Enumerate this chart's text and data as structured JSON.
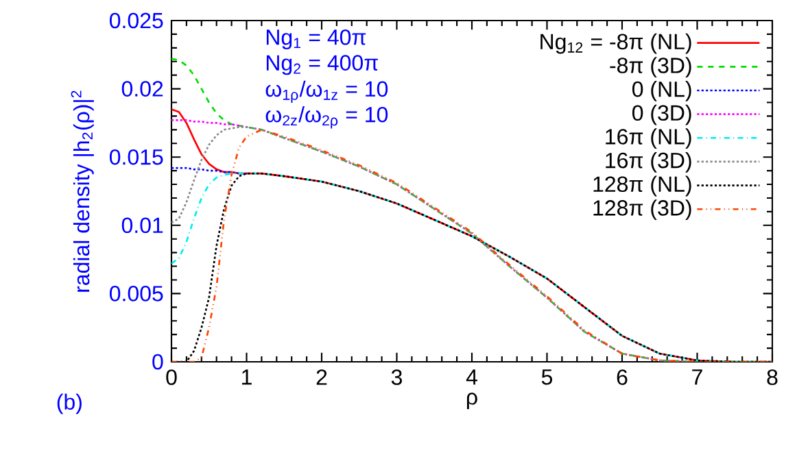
{
  "chart_data": {
    "type": "line",
    "xlabel": "ρ",
    "ylabel": "radial density |h$_{2}$(ρ)|$^{2}$",
    "annotations": [
      "Ng$_{1}$ = 40π",
      "Ng$_{2}$ = 400π",
      "ω$_{1ρ}$/ω$_{1z}$ = 10",
      "ω$_{2z}$/ω$_{2ρ}$ = 10",
      "(b)"
    ],
    "x": [
      0,
      0.1,
      0.2,
      0.3,
      0.4,
      0.5,
      0.6,
      0.7,
      0.8,
      0.9,
      1.0,
      1.2,
      1.5,
      2,
      2.5,
      3,
      3.5,
      4,
      4.5,
      5,
      5.5,
      6,
      6.5,
      7,
      7.5,
      8
    ],
    "series": [
      {
        "name": "Ng$_{12}$ = -8π (NL)",
        "color": "#ff0000",
        "line_style": "solid",
        "values": [
          0.0185,
          0.0183,
          0.0175,
          0.0163,
          0.0152,
          0.0145,
          0.0141,
          0.0139,
          0.0139,
          0.0138,
          0.0138,
          0.0138,
          0.0136,
          0.0132,
          0.0125,
          0.0116,
          0.0104,
          0.0092,
          0.0077,
          0.0061,
          0.004,
          0.0019,
          0.0006,
          0.0001,
          0,
          0
        ]
      },
      {
        "name": "-8π (3D)",
        "color": "#00dd00",
        "line_style": "dashed",
        "values": [
          0.0222,
          0.0221,
          0.0217,
          0.021,
          0.02,
          0.019,
          0.0182,
          0.0177,
          0.0174,
          0.0173,
          0.0172,
          0.017,
          0.0164,
          0.0154,
          0.0143,
          0.013,
          0.0112,
          0.0094,
          0.007,
          0.0047,
          0.0022,
          0.0006,
          0.0001,
          0,
          0,
          0
        ]
      },
      {
        "name": "0 (NL)",
        "color": "#0000ff",
        "line_style": "dotted",
        "values": [
          0.0142,
          0.0142,
          0.0142,
          0.0141,
          0.0141,
          0.014,
          0.014,
          0.0139,
          0.0139,
          0.0138,
          0.0138,
          null,
          null,
          null,
          null,
          null,
          null,
          null,
          null,
          null,
          null,
          null,
          null,
          null,
          null,
          null
        ]
      },
      {
        "name": "0 (3D)",
        "color": "#ff00ff",
        "line_style": "dotted",
        "values": [
          0.0177,
          0.0177,
          0.0177,
          0.0176,
          0.0176,
          0.0175,
          0.0175,
          0.0174,
          0.0174,
          0.0173,
          0.0172,
          0.017,
          0.0164,
          0.0154,
          0.0143,
          0.013,
          0.0112,
          0.0094,
          0.007,
          0.0047,
          0.0022,
          0.0006,
          0.0001,
          0,
          null,
          null
        ]
      },
      {
        "name": "16π (NL)",
        "color": "#00eeee",
        "line_style": "dashdot",
        "values": [
          0.0072,
          0.0076,
          0.0088,
          0.0105,
          0.012,
          0.013,
          0.0135,
          0.0137,
          0.0138,
          0.0138,
          0.0138,
          0.0138,
          0.0136,
          0.0132,
          0.0125,
          0.0116,
          0.0104,
          0.0092,
          0.0077,
          0.0061,
          0.004,
          0.0019,
          0.0006,
          0.0001,
          0,
          0
        ]
      },
      {
        "name": "16π (3D)",
        "color": "#888888",
        "line_style": "dotted",
        "values": [
          0.0102,
          0.0105,
          0.0117,
          0.0133,
          0.0148,
          0.0159,
          0.0166,
          0.017,
          0.0171,
          0.0172,
          0.0172,
          0.017,
          0.0164,
          0.0154,
          0.0143,
          0.013,
          0.0112,
          0.0094,
          0.007,
          0.0047,
          0.0022,
          0.0006,
          0.0001,
          0,
          0,
          0
        ]
      },
      {
        "name": "128π (NL)",
        "color": "#000000",
        "line_style": "dotted",
        "values": [
          0,
          0,
          0,
          0.0008,
          0.0025,
          0.0047,
          0.0085,
          0.0112,
          0.0129,
          0.0136,
          0.0138,
          0.0138,
          0.0136,
          0.0132,
          0.0125,
          0.0116,
          0.0104,
          0.0092,
          0.0077,
          0.0061,
          0.004,
          0.0019,
          0.0006,
          0.0001,
          0,
          0
        ]
      },
      {
        "name": "128π (3D)",
        "color": "#ff4500",
        "line_style": "dashdotdot",
        "values": [
          0,
          0,
          0,
          0,
          0.0003,
          0.0025,
          0.0055,
          0.0104,
          0.0137,
          0.0157,
          0.0165,
          0.017,
          0.0165,
          0.0155,
          0.0144,
          0.0131,
          0.0113,
          0.0095,
          0.0071,
          0.0048,
          0.0023,
          0.0006,
          0.0001,
          0,
          0,
          0
        ]
      }
    ],
    "xlim": [
      0,
      8
    ],
    "ylim": [
      0,
      0.025
    ],
    "xticks": [
      0,
      1,
      2,
      3,
      4,
      5,
      6,
      7,
      8
    ],
    "yticks": [
      0,
      0.005,
      0.01,
      0.015,
      0.02,
      0.025
    ],
    "legend": "top right",
    "grid": false
  }
}
